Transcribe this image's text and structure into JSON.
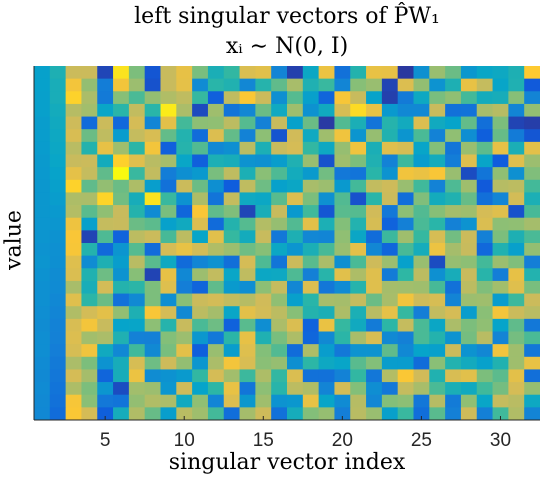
{
  "chart_data": {
    "type": "heatmap",
    "title_line1": "left singular vectors of P̂W₁",
    "title_line2": "xᵢ ∼ N(0, I)",
    "xlabel": "singular vector index",
    "ylabel": "value",
    "x_ticks": [
      5,
      10,
      15,
      20,
      25,
      30
    ],
    "x_range": [
      0.5,
      32.5
    ],
    "n_columns": 32,
    "n_rows": 28,
    "colormap": "parula",
    "colormap_stops": [
      "#352a87",
      "#0f5cdd",
      "#1481d6",
      "#06a4ca",
      "#2eb7a4",
      "#87bf77",
      "#d1bb59",
      "#fec832",
      "#f9fb0e"
    ],
    "value_range": [
      -1,
      1
    ],
    "values": [
      [
        -0.27,
        -0.1,
        0.48,
        0.48,
        -0.86,
        0.88,
        0.22,
        -0.78,
        0.47,
        0.62,
        0.21,
        -0.12,
        0.01,
        0.55,
        0.59,
        -0.48,
        -0.89,
        -0.21,
        0.65,
        -0.61,
        -0.06,
        0.63,
        0.62,
        -0.93,
        -0.39,
        0.31,
        0.17,
        -0.34,
        -0.23,
        -0.2,
        -0.1,
        0.76
      ],
      [
        -0.27,
        -0.13,
        0.69,
        0.29,
        -0.53,
        0.69,
        0.32,
        -0.8,
        0.47,
        0.61,
        -0.43,
        -0.03,
        -0.08,
        -0.46,
        -0.05,
        0.14,
        0.36,
        -0.09,
        0.03,
        -0.47,
        0.25,
        0.31,
        -0.87,
        0.56,
        0.29,
        -0.37,
        -0.1,
        0.63,
        0.46,
        -0.24,
        -0.09,
        -0.76
      ],
      [
        -0.28,
        -0.13,
        0.8,
        0.37,
        -0.55,
        0.25,
        0.08,
        0.29,
        0.39,
        0.44,
        0.02,
        -0.72,
        0.44,
        0.73,
        0.48,
        -0.4,
        0.11,
        -0.28,
        -0.69,
        0.71,
        0.47,
        -0.26,
        -0.89,
        -0.55,
        -0.2,
        0.21,
        0.28,
        0.06,
        -0.16,
        -0.14,
        0.25,
        -0.48
      ],
      [
        -0.28,
        -0.16,
        0.41,
        0.34,
        -0.23,
        -0.03,
        0.45,
        -0.03,
        0.92,
        0.37,
        -0.84,
        0.33,
        -0.59,
        -0.46,
        0.17,
        -0.19,
        0.33,
        -0.38,
        -0.18,
        0.53,
        0.84,
        0.63,
        -0.33,
        -0.45,
        -0.45,
        0.47,
        -0.61,
        -0.6,
        0.36,
        0.41,
        -0.47,
        0.29
      ],
      [
        -0.3,
        -0.18,
        0.49,
        -0.65,
        0.48,
        -0.67,
        0.52,
        -0.47,
        0.6,
        0.06,
        0.27,
        0.28,
        0.43,
        0.11,
        -0.5,
        0.47,
        -0.27,
        0.17,
        -0.92,
        0.1,
        -0.12,
        -0.59,
        -0.05,
        -0.17,
        0.56,
        -0.18,
        -0.25,
        0.15,
        -0.62,
        0.22,
        -0.87,
        -0.9
      ],
      [
        -0.3,
        -0.2,
        0.54,
        0.17,
        0.44,
        -0.31,
        0.46,
        0.54,
        0.15,
        -0.07,
        -0.64,
        0.56,
        0.15,
        -0.49,
        0.27,
        -0.79,
        0.5,
        -0.19,
        0.33,
        0.67,
        -0.36,
        0.3,
        -0.08,
        -0.36,
        0.08,
        -0.49,
        0.28,
        -0.41,
        -0.73,
        0.16,
        -0.54,
        -0.78
      ],
      [
        -0.31,
        -0.21,
        0.42,
        -0.06,
        0.62,
        0.33,
        -0.02,
        0.69,
        -0.72,
        -0.05,
        0.1,
        -0.45,
        -0.4,
        0.42,
        -0.11,
        0.47,
        0.52,
        0.01,
        -0.2,
        0.3,
        0.67,
        -0.12,
        0.58,
        0.53,
        -0.24,
        0.24,
        -0.58,
        0.31,
        0.13,
        0.62,
        -0.12,
        0.6
      ],
      [
        -0.32,
        -0.23,
        0.47,
        0.48,
        -0.16,
        0.79,
        0.58,
        0.42,
        0.35,
        -0.23,
        -0.72,
        -0.11,
        -0.14,
        -0.37,
        -0.39,
        -0.3,
        -0.09,
        0.31,
        -0.8,
        0.33,
        0.22,
        -0.09,
        -0.49,
        0.04,
        -0.31,
        -0.16,
        -0.53,
        0.57,
        -0.24,
        -0.74,
        0.58,
        0.32
      ],
      [
        -0.33,
        -0.26,
        0.61,
        0.46,
        0.14,
        0.99,
        0.03,
        0.45,
        -0.53,
        -0.4,
        -0.33,
        0.21,
        0.44,
        -0.11,
        0.26,
        0.09,
        -0.16,
        -0.32,
        0.19,
        -0.56,
        -0.59,
        -0.03,
        -0.37,
        0.68,
        0.64,
        0.72,
        0.31,
        -0.83,
        -0.58,
        0.28,
        -0.39,
        0.23
      ],
      [
        -0.34,
        -0.28,
        0.8,
        0.14,
        0.29,
        0.17,
        0.38,
        -0.29,
        -0.61,
        0.48,
        0.17,
        -0.4,
        -0.74,
        0.44,
        0.18,
        -0.27,
        -0.22,
        0.36,
        0.32,
        -0.33,
        0.06,
        0.45,
        0.49,
        0.31,
        0.05,
        -0.49,
        0.09,
        0.33,
        -0.76,
        0.41,
        0.43,
        0.06
      ],
      [
        -0.34,
        -0.3,
        0.38,
        0.37,
        0.81,
        0.19,
        -0.14,
        0.88,
        0.03,
        -0.38,
        0.38,
        -0.59,
        0.46,
        -0.19,
        -0.21,
        0.12,
        0.56,
        0.22,
        -0.39,
        0.1,
        -0.8,
        -0.03,
        0.48,
        -0.63,
        0.23,
        -0.16,
        -0.08,
        0.16,
        -0.62,
        -0.47,
        0.51,
        -0.11
      ],
      [
        -0.34,
        -0.33,
        0.4,
        0.12,
        0.28,
        0.47,
        -0.06,
        -0.43,
        0.21,
        -0.68,
        0.72,
        0.14,
        0.23,
        -0.86,
        -0.13,
        0.47,
        -0.33,
        0.05,
        -0.78,
        0.12,
        0.11,
        0.5,
        -0.56,
        0.27,
        0.1,
        0.25,
        0.35,
        0.33,
        0.52,
        0.58,
        -0.8,
        0.07
      ],
      [
        -0.35,
        -0.35,
        0.66,
        -0.28,
        0.46,
        0.47,
        0.17,
        0.13,
        -0.27,
        -0.18,
        0.56,
        -0.65,
        -0.06,
        0.11,
        0.4,
        0.3,
        0.1,
        0.6,
        -0.11,
        0.24,
        -0.07,
        0.53,
        -0.7,
        -0.51,
        0.08,
        -0.03,
        -0.5,
        -0.37,
        0.55,
        0.27,
        0.28,
        0.35
      ],
      [
        -0.36,
        -0.38,
        0.72,
        -0.87,
        0.09,
        -0.7,
        0.43,
        0.48,
        0.07,
        0.43,
        -0.24,
        0.59,
        0.02,
        -0.16,
        0.47,
        -0.56,
        -0.1,
        -0.46,
        -0.47,
        0.28,
        -0.22,
        -0.64,
        0.04,
        0.33,
        0.02,
        0.53,
        0.19,
        0.48,
        -0.51,
        0.22,
        -0.1,
        0.08
      ],
      [
        -0.37,
        -0.39,
        0.71,
        -0.06,
        -0.66,
        -0.36,
        0.11,
        -0.64,
        0.52,
        0.63,
        0.51,
        0.39,
        0.32,
        0.18,
        0.25,
        -0.21,
        -0.36,
        -0.12,
        0.07,
        0.31,
        0.6,
        -0.46,
        -0.68,
        0.07,
        -0.15,
        0.65,
        0.35,
        0.47,
        -0.67,
        -0.08,
        -0.28,
        0.29
      ],
      [
        -0.36,
        -0.4,
        0.57,
        -0.42,
        -0.1,
        -0.3,
        0.42,
        0.12,
        -0.2,
        -0.65,
        -0.47,
        -0.38,
        -0.62,
        0.52,
        0.09,
        -0.58,
        0.48,
        0.12,
        0.37,
        -0.4,
        0.08,
        0.49,
        0.32,
        -0.27,
        0.31,
        -0.83,
        0.3,
        0.27,
        0.06,
        0.32,
        0.23,
        -0.52
      ],
      [
        -0.38,
        -0.42,
        0.55,
        -0.08,
        0.18,
        -0.37,
        0.25,
        -0.87,
        0.62,
        -0.45,
        0.32,
        0.45,
        -0.23,
        0.44,
        -0.21,
        -0.2,
        0.09,
        -0.51,
        -0.04,
        0.59,
        0.38,
        0.58,
        -0.54,
        0.0,
        0.43,
        -0.39,
        -0.14,
        0.47,
        -0.04,
        -0.52,
        0.62,
        -0.07
      ],
      [
        -0.39,
        -0.43,
        0.36,
        -0.13,
        0.51,
        -0.06,
        -0.02,
        0.22,
        0.57,
        -0.52,
        -0.69,
        0.14,
        -0.32,
        -0.41,
        0.27,
        0.46,
        -0.46,
        0.56,
        -0.57,
        -0.43,
        -0.05,
        0.58,
        0.35,
        0.34,
        0.33,
        0.07,
        -0.61,
        0.43,
        0.23,
        0.34,
        0.58,
        0.21
      ],
      [
        -0.39,
        -0.45,
        0.58,
        -0.02,
        0.17,
        -0.61,
        -0.44,
        0.22,
        -0.41,
        0.26,
        0.48,
        0.51,
        0.45,
        0.41,
        0.5,
        0.28,
        -0.28,
        -0.03,
        0.36,
        0.35,
        0.46,
        0.17,
        0.36,
        0.68,
        0.49,
        0.53,
        -0.48,
        0.32,
        0.33,
        -0.31,
        0.04,
        0.48
      ],
      [
        -0.41,
        -0.47,
        0.39,
        0.51,
        0.6,
        0.29,
        -0.1,
        0.72,
        0.52,
        -0.44,
        0.43,
        0.35,
        -0.23,
        0.6,
        0.51,
        0.43,
        0.25,
        -0.06,
        -0.12,
        0.38,
        -0.11,
        0.42,
        0.61,
        0.02,
        -0.52,
        0.45,
        0.52,
        -0.3,
        0.26,
        0.69,
        0.48,
        0.42
      ],
      [
        -0.42,
        -0.49,
        0.54,
        0.69,
        0.47,
        -0.25,
        -0.24,
        0.27,
        -0.05,
        0.47,
        0.08,
        0.18,
        -0.71,
        0.12,
        -0.41,
        0.37,
        0.55,
        -0.7,
        0.64,
        0.02,
        -0.18,
        -0.54,
        -0.01,
        0.46,
        0.08,
        -0.22,
        0.37,
        0.22,
        0.28,
        -0.25,
        0.14,
        -0.56
      ],
      [
        -0.41,
        -0.5,
        0.56,
        0.34,
        0.37,
        -0.09,
        -0.5,
        -0.51,
        0.24,
        0.32,
        -0.34,
        -0.56,
        -0.02,
        0.62,
        -0.09,
        0.21,
        0.38,
        -0.68,
        -0.44,
        -0.02,
        0.36,
        0.54,
        -0.44,
        -0.51,
        0.08,
        -0.06,
        -0.37,
        0.2,
        0.42,
        -0.48,
        0.2,
        0.08
      ],
      [
        -0.41,
        -0.52,
        0.53,
        0.67,
        -0.18,
        -0.45,
        0.05,
        -0.44,
        0.21,
        0.6,
        -0.73,
        0.31,
        -0.3,
        0.57,
        0.24,
        0.1,
        -0.64,
        0.38,
        -0.3,
        -0.56,
        -0.37,
        -0.37,
        0.14,
        -0.45,
        -0.25,
        -0.28,
        0.48,
        -0.37,
        -0.46,
        0.67,
        0.33,
        -0.57
      ],
      [
        -0.43,
        -0.55,
        0.37,
        0.22,
        -0.37,
        -0.14,
        0.53,
        0.18,
        0.49,
        0.29,
        -0.35,
        0.37,
        0.69,
        0.54,
        0.26,
        0.3,
        -0.4,
        -0.01,
        -0.2,
        -0.24,
        0.12,
        0.24,
        -0.3,
        -0.31,
        -0.64,
        0.26,
        -0.07,
        -0.17,
        -0.27,
        -0.08,
        0.33,
        0.63
      ],
      [
        -0.44,
        -0.57,
        0.52,
        0.35,
        -0.69,
        -0.14,
        0.65,
        -0.42,
        -0.38,
        -0.32,
        0.01,
        0.52,
        0.34,
        0.04,
        0.38,
        0.01,
        0.55,
        -0.61,
        -0.61,
        -0.49,
        0.01,
        -0.57,
        0.4,
        0.73,
        0.5,
        -0.08,
        0.54,
        0.59,
        0.22,
        0.13,
        0.6,
        -0.62
      ],
      [
        -0.43,
        -0.59,
        0.38,
        0.22,
        -0.35,
        -0.83,
        0.34,
        0.32,
        -0.35,
        0.49,
        -0.25,
        -0.01,
        0.63,
        -0.58,
        0.27,
        -0.04,
        0.43,
        0.39,
        -0.48,
        0.51,
        0.24,
        -0.41,
        -0.56,
        0.46,
        0.36,
        0.08,
        -0.12,
        -0.18,
        0.05,
        0.2,
        0.52,
        0.3
      ],
      [
        -0.44,
        -0.61,
        0.71,
        0.26,
        -0.56,
        -0.59,
        0.29,
        0.39,
        0.37,
        -0.18,
        0.28,
        -0.47,
        0.56,
        -0.34,
        0.33,
        -0.37,
        -0.34,
        0.63,
        -0.24,
        -0.43,
        0.41,
        -0.46,
        0.24,
        0.27,
        -0.57,
        0.41,
        -0.54,
        0.28,
        -0.23,
        0.46,
        0.42,
        -0.2
      ],
      [
        -0.45,
        -0.64,
        0.73,
        0.52,
        -0.73,
        -0.15,
        0.39,
        0.16,
        -0.29,
        0.42,
        0.33,
        0.06,
        -0.63,
        0.35,
        0.49,
        -0.61,
        -0.15,
        0.24,
        0.3,
        -0.52,
        0.42,
        0.31,
        -0.28,
        0.03,
        -0.63,
        0.12,
        -0.51,
        0.49,
        -0.51,
        0.05,
        0.39,
        -0.48
      ]
    ]
  }
}
